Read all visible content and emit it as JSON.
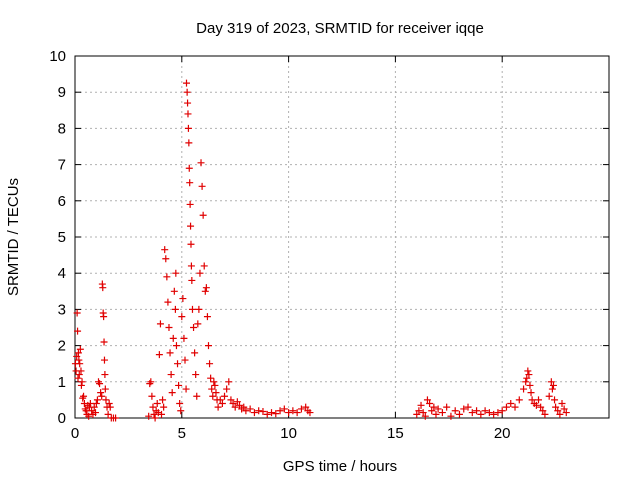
{
  "chart_data": {
    "type": "scatter",
    "title": "Day 319 of 2023, SRMTID for receiver iqqe",
    "xlabel": "GPS time / hours",
    "ylabel": "SRMTID / TECUs",
    "xlim": [
      0,
      25
    ],
    "ylim": [
      0,
      10
    ],
    "xticks": [
      0,
      5,
      10,
      15,
      20
    ],
    "yticks": [
      0,
      1,
      2,
      3,
      4,
      5,
      6,
      7,
      8,
      9,
      10
    ],
    "grid": true,
    "marker": "plus",
    "color": "#e00000",
    "series": [
      {
        "name": "SRMTID",
        "points": [
          [
            0.02,
            1.5
          ],
          [
            0.05,
            1.3
          ],
          [
            0.08,
            1.7
          ],
          [
            0.1,
            2.9
          ],
          [
            0.12,
            2.4
          ],
          [
            0.14,
            1.1
          ],
          [
            0.16,
            1.8
          ],
          [
            0.18,
            1.6
          ],
          [
            0.2,
            1.2
          ],
          [
            0.22,
            1.5
          ],
          [
            0.25,
            1.9
          ],
          [
            0.28,
            1.3
          ],
          [
            0.3,
            0.9
          ],
          [
            0.33,
            1.0
          ],
          [
            0.36,
            0.55
          ],
          [
            0.4,
            0.6
          ],
          [
            0.44,
            0.4
          ],
          [
            0.48,
            0.25
          ],
          [
            0.52,
            0.2
          ],
          [
            0.56,
            0.1
          ],
          [
            0.6,
            0.35
          ],
          [
            0.64,
            0.05
          ],
          [
            0.68,
            0.3
          ],
          [
            0.72,
            0.4
          ],
          [
            0.78,
            0.2
          ],
          [
            0.84,
            0.1
          ],
          [
            0.9,
            0.3
          ],
          [
            0.96,
            0.15
          ],
          [
            1.0,
            0.4
          ],
          [
            1.05,
            0.5
          ],
          [
            1.1,
            1.0
          ],
          [
            1.15,
            0.95
          ],
          [
            1.2,
            0.7
          ],
          [
            1.25,
            0.6
          ],
          [
            1.28,
            3.7
          ],
          [
            1.3,
            3.6
          ],
          [
            1.32,
            2.9
          ],
          [
            1.34,
            2.8
          ],
          [
            1.36,
            2.1
          ],
          [
            1.38,
            1.6
          ],
          [
            1.4,
            1.2
          ],
          [
            1.42,
            0.8
          ],
          [
            1.45,
            0.5
          ],
          [
            1.5,
            0.3
          ],
          [
            1.55,
            0.1
          ],
          [
            1.6,
            0.4
          ],
          [
            1.65,
            0.3
          ],
          [
            1.7,
            0.0
          ],
          [
            1.8,
            0.0
          ],
          [
            1.9,
            0.0
          ],
          [
            3.45,
            0.05
          ],
          [
            3.5,
            0.95
          ],
          [
            3.55,
            1.0
          ],
          [
            3.6,
            0.6
          ],
          [
            3.65,
            0.3
          ],
          [
            3.7,
            0.1
          ],
          [
            3.75,
            0.0
          ],
          [
            3.8,
            0.2
          ],
          [
            3.85,
            0.4
          ],
          [
            3.9,
            0.15
          ],
          [
            3.95,
            1.75
          ],
          [
            4.0,
            2.6
          ],
          [
            4.05,
            0.1
          ],
          [
            4.1,
            0.5
          ],
          [
            4.15,
            0.3
          ],
          [
            4.2,
            4.65
          ],
          [
            4.25,
            4.4
          ],
          [
            4.3,
            3.9
          ],
          [
            4.35,
            3.2
          ],
          [
            4.4,
            2.5
          ],
          [
            4.45,
            1.8
          ],
          [
            4.5,
            1.2
          ],
          [
            4.55,
            0.7
          ],
          [
            4.6,
            2.2
          ],
          [
            4.65,
            3.5
          ],
          [
            4.7,
            3.0
          ],
          [
            4.72,
            4.0
          ],
          [
            4.75,
            2.0
          ],
          [
            4.8,
            1.5
          ],
          [
            4.85,
            0.9
          ],
          [
            4.9,
            0.4
          ],
          [
            4.95,
            0.2
          ],
          [
            5.0,
            2.8
          ],
          [
            5.05,
            3.3
          ],
          [
            5.1,
            2.2
          ],
          [
            5.15,
            1.6
          ],
          [
            5.2,
            0.8
          ],
          [
            5.22,
            9.25
          ],
          [
            5.25,
            9.0
          ],
          [
            5.27,
            8.7
          ],
          [
            5.29,
            8.4
          ],
          [
            5.31,
            8.0
          ],
          [
            5.33,
            7.6
          ],
          [
            5.35,
            6.9
          ],
          [
            5.37,
            6.5
          ],
          [
            5.39,
            5.9
          ],
          [
            5.41,
            5.3
          ],
          [
            5.43,
            4.8
          ],
          [
            5.45,
            4.2
          ],
          [
            5.47,
            3.8
          ],
          [
            5.5,
            3.0
          ],
          [
            5.55,
            2.5
          ],
          [
            5.6,
            1.8
          ],
          [
            5.65,
            1.2
          ],
          [
            5.7,
            0.6
          ],
          [
            5.75,
            2.6
          ],
          [
            5.8,
            3.0
          ],
          [
            5.85,
            4.0
          ],
          [
            5.9,
            7.05
          ],
          [
            5.95,
            6.4
          ],
          [
            6.0,
            5.6
          ],
          [
            6.05,
            4.2
          ],
          [
            6.1,
            3.5
          ],
          [
            6.15,
            3.6
          ],
          [
            6.2,
            2.8
          ],
          [
            6.25,
            2.0
          ],
          [
            6.3,
            1.5
          ],
          [
            6.35,
            1.1
          ],
          [
            6.4,
            0.8
          ],
          [
            6.45,
            0.6
          ],
          [
            6.5,
            1.0
          ],
          [
            6.55,
            0.9
          ],
          [
            6.6,
            0.7
          ],
          [
            6.65,
            0.5
          ],
          [
            6.7,
            0.3
          ],
          [
            6.8,
            0.5
          ],
          [
            6.9,
            0.4
          ],
          [
            7.0,
            0.6
          ],
          [
            7.1,
            0.8
          ],
          [
            7.2,
            1.0
          ],
          [
            7.3,
            0.5
          ],
          [
            7.4,
            0.4
          ],
          [
            7.5,
            0.3
          ],
          [
            7.6,
            0.45
          ],
          [
            7.7,
            0.35
          ],
          [
            7.8,
            0.25
          ],
          [
            7.9,
            0.3
          ],
          [
            8.0,
            0.2
          ],
          [
            8.2,
            0.25
          ],
          [
            8.4,
            0.15
          ],
          [
            8.6,
            0.2
          ],
          [
            8.8,
            0.18
          ],
          [
            9.0,
            0.1
          ],
          [
            9.2,
            0.15
          ],
          [
            9.4,
            0.12
          ],
          [
            9.6,
            0.2
          ],
          [
            9.8,
            0.25
          ],
          [
            10.0,
            0.15
          ],
          [
            10.2,
            0.2
          ],
          [
            10.4,
            0.15
          ],
          [
            10.6,
            0.25
          ],
          [
            10.8,
            0.3
          ],
          [
            10.9,
            0.2
          ],
          [
            11.0,
            0.15
          ],
          [
            16.0,
            0.1
          ],
          [
            16.1,
            0.2
          ],
          [
            16.2,
            0.35
          ],
          [
            16.3,
            0.15
          ],
          [
            16.4,
            0.05
          ],
          [
            16.5,
            0.5
          ],
          [
            16.6,
            0.4
          ],
          [
            16.7,
            0.2
          ],
          [
            16.8,
            0.3
          ],
          [
            16.9,
            0.1
          ],
          [
            17.0,
            0.25
          ],
          [
            17.2,
            0.15
          ],
          [
            17.4,
            0.3
          ],
          [
            17.6,
            0.05
          ],
          [
            17.8,
            0.2
          ],
          [
            18.0,
            0.1
          ],
          [
            18.2,
            0.25
          ],
          [
            18.4,
            0.3
          ],
          [
            18.6,
            0.15
          ],
          [
            18.8,
            0.2
          ],
          [
            19.0,
            0.1
          ],
          [
            19.2,
            0.2
          ],
          [
            19.4,
            0.15
          ],
          [
            19.6,
            0.1
          ],
          [
            19.8,
            0.15
          ],
          [
            20.0,
            0.2
          ],
          [
            20.2,
            0.3
          ],
          [
            20.4,
            0.4
          ],
          [
            20.6,
            0.3
          ],
          [
            20.8,
            0.5
          ],
          [
            21.0,
            0.8
          ],
          [
            21.1,
            1.0
          ],
          [
            21.15,
            1.1
          ],
          [
            21.2,
            1.3
          ],
          [
            21.25,
            1.2
          ],
          [
            21.3,
            0.9
          ],
          [
            21.35,
            0.7
          ],
          [
            21.4,
            0.5
          ],
          [
            21.5,
            0.4
          ],
          [
            21.6,
            0.35
          ],
          [
            21.7,
            0.5
          ],
          [
            21.8,
            0.3
          ],
          [
            21.9,
            0.2
          ],
          [
            22.0,
            0.1
          ],
          [
            22.2,
            0.6
          ],
          [
            22.3,
            1.0
          ],
          [
            22.35,
            0.8
          ],
          [
            22.4,
            0.9
          ],
          [
            22.45,
            0.5
          ],
          [
            22.5,
            0.3
          ],
          [
            22.6,
            0.2
          ],
          [
            22.7,
            0.1
          ],
          [
            22.8,
            0.4
          ],
          [
            22.9,
            0.25
          ],
          [
            23.0,
            0.15
          ]
        ]
      }
    ]
  }
}
